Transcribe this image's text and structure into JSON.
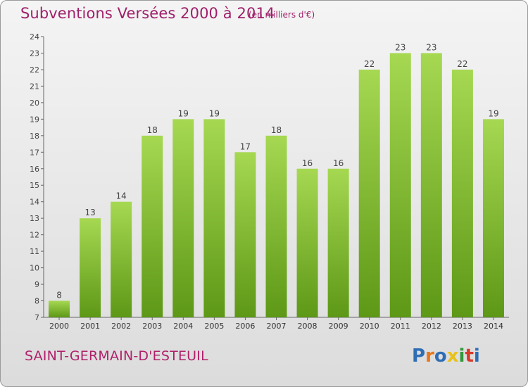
{
  "header": {
    "title": "Subventions Versées 2000 à 2014",
    "subtitle": "(en milliers d'€)"
  },
  "footer": {
    "commune": "SAINT-GERMAIN-D'ESTEUIL",
    "brand": "Proxiti"
  },
  "colors": {
    "title": "#a0206a",
    "bar_light": "#9fd44a",
    "bar_dark": "#5f9a17"
  },
  "chart_data": {
    "type": "bar",
    "categories": [
      "2000",
      "2001",
      "2002",
      "2003",
      "2004",
      "2005",
      "2006",
      "2007",
      "2008",
      "2009",
      "2010",
      "2011",
      "2012",
      "2013",
      "2014"
    ],
    "values": [
      8,
      13,
      14,
      18,
      19,
      19,
      17,
      18,
      16,
      16,
      22,
      23,
      23,
      22,
      19
    ],
    "title": "Subventions Versées 2000 à 2014",
    "subtitle": "(en milliers d'€)",
    "ylim": [
      7,
      24
    ],
    "yticks": [
      7,
      8,
      9,
      10,
      11,
      12,
      13,
      14,
      15,
      16,
      17,
      18,
      19,
      20,
      21,
      22,
      23,
      24
    ],
    "grid": false,
    "legend": "none"
  }
}
